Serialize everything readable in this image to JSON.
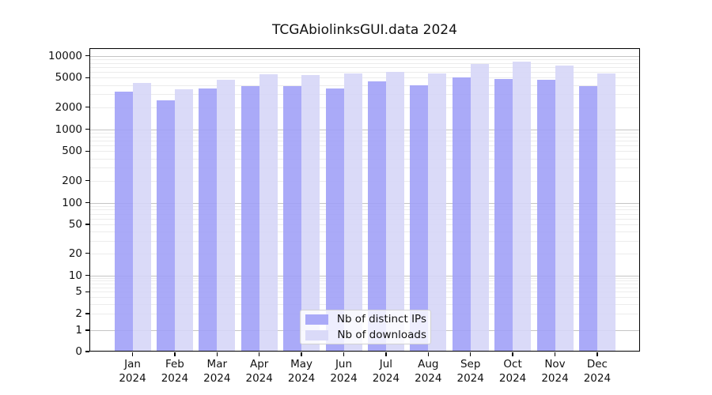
{
  "chart_data": {
    "type": "bar",
    "title": "TCGAbiolinksGUI.data 2024",
    "categories": [
      "Jan",
      "Feb",
      "Mar",
      "Apr",
      "May",
      "Jun",
      "Jul",
      "Aug",
      "Sep",
      "Oct",
      "Nov",
      "Dec"
    ],
    "x_year": "2024",
    "series": [
      {
        "name": "Nb of distinct IPs",
        "values": [
          3250,
          2500,
          3600,
          3850,
          3830,
          3600,
          4450,
          4000,
          5100,
          4820,
          4670,
          3850
        ],
        "color": "#9e9ef7",
        "legend_color": "#aaaaf8"
      },
      {
        "name": "Nb of downloads",
        "values": [
          4250,
          3450,
          4700,
          5550,
          5450,
          5700,
          6050,
          5770,
          7650,
          8300,
          7400,
          5770
        ],
        "color": "#d5d5f7",
        "legend_color": "#dadaf8"
      }
    ],
    "yaxis": {
      "scale": "log",
      "tick_labels": [
        10000,
        5000,
        2000,
        1000,
        500,
        200,
        100,
        50,
        20,
        10,
        5,
        2,
        1,
        0
      ],
      "ylim": [
        0,
        13000
      ]
    },
    "grid": true,
    "legend_position": "bottom-center",
    "colors": {
      "grid_major": "#c4c4c4",
      "grid_minor": "#ececec",
      "frame": "#000000",
      "bar_opacity": 0.88
    }
  }
}
